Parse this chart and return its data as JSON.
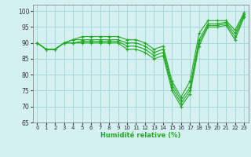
{
  "title": "",
  "xlabel": "Humidité relative (%)",
  "ylabel": "",
  "background_color": "#d4f0f0",
  "grid_color": "#a8d8d8",
  "line_color": "#22aa22",
  "xlim": [
    -0.5,
    23.5
  ],
  "ylim": [
    65,
    102
  ],
  "yticks": [
    65,
    70,
    75,
    80,
    85,
    90,
    95,
    100
  ],
  "xticks": [
    0,
    1,
    2,
    3,
    4,
    5,
    6,
    7,
    8,
    9,
    10,
    11,
    12,
    13,
    14,
    15,
    16,
    17,
    18,
    19,
    20,
    21,
    22,
    23
  ],
  "series": [
    [
      90,
      88,
      88,
      90,
      90,
      90,
      90,
      90,
      90,
      90,
      88,
      88,
      87,
      85,
      86,
      75,
      70,
      74,
      89,
      95,
      95,
      95.5,
      91,
      98
    ],
    [
      90,
      88,
      88,
      90,
      90,
      90.5,
      90.5,
      90.5,
      90.5,
      90.5,
      89,
      89,
      88,
      86,
      87,
      76,
      71,
      75,
      90,
      95.5,
      95.5,
      96,
      92,
      98.5
    ],
    [
      90,
      88,
      88,
      90,
      91,
      91,
      91,
      91,
      91,
      91,
      90,
      90,
      89,
      87,
      88,
      77,
      72,
      76,
      91,
      96,
      96,
      96.5,
      93,
      99
    ],
    [
      90,
      88,
      88,
      90,
      91,
      92,
      92,
      92,
      92,
      92,
      91,
      91,
      90,
      88,
      89,
      78,
      73,
      78,
      93,
      97,
      97,
      97,
      94,
      99.5
    ]
  ]
}
